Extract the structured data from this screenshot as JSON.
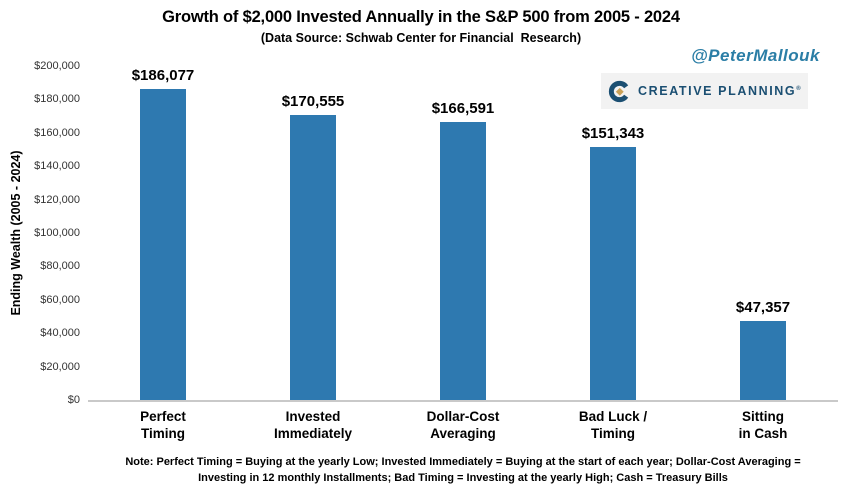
{
  "branding": {
    "handle": "@PeterMallouk",
    "logo_text": "CREATIVE PLANNING",
    "logo_mark": "®",
    "logo_navy": "#1B4F72",
    "logo_gold": "#C9A158"
  },
  "note": "Note: Perfect Timing = Buying at the yearly Low; Invested Immediately = Buying at the start of each year; Dollar-Cost Averaging = Investing in 12 monthly Installments; Bad Timing = Investing at the yearly High; Cash = Treasury Bills",
  "chart_data": {
    "type": "bar",
    "title": "Growth of $2,000 Invested Annually in the S&P 500 from 2005 - 2024",
    "subtitle": "(Data Source: Schwab Center for Financial  Research)",
    "categories": [
      "Perfect\nTiming",
      "Invested\nImmediately",
      "Dollar-Cost\nAveraging",
      "Bad Luck /\nTiming",
      "Sitting\nin Cash"
    ],
    "values": [
      186077,
      170555,
      166591,
      151343,
      47357
    ],
    "value_labels": [
      "$186,077",
      "$170,555",
      "$166,591",
      "$151,343",
      "$47,357"
    ],
    "xlabel": "",
    "ylabel": "Ending Wealth (2005 - 2024)",
    "ylim": [
      0,
      200000
    ],
    "ytick_values": [
      0,
      20000,
      40000,
      60000,
      80000,
      100000,
      120000,
      140000,
      160000,
      180000,
      200000
    ],
    "ytick_labels": [
      "$0",
      "$20,000",
      "$40,000",
      "$60,000",
      "$80,000",
      "$100,000",
      "$120,000",
      "$140,000",
      "$160,000",
      "$180,000",
      "$200,000"
    ],
    "grid": false,
    "legend": null,
    "bar_color": "#2E79B0"
  }
}
